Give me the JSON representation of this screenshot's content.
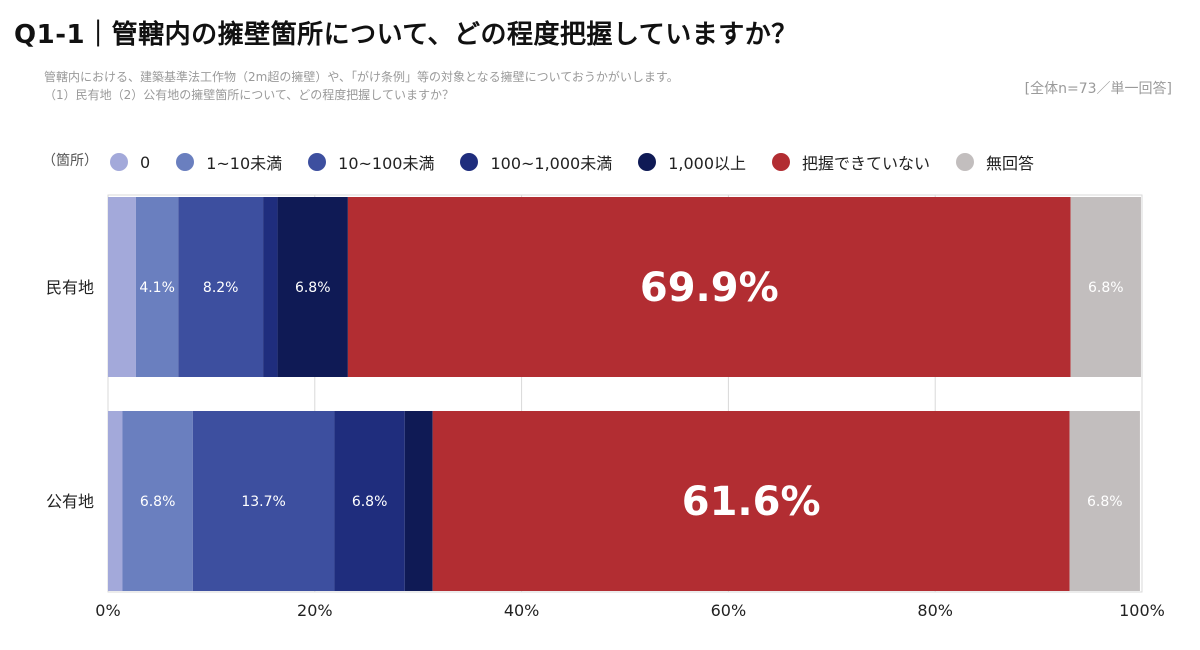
{
  "header": {
    "title": "Q1-1｜管轄内の擁壁箇所について、どの程度把握していますか？",
    "subtitle_line1": "管轄内における、建築基準法工作物（2m超の擁壁）や、「がけ条例」等の対象となる擁壁についておうかがいします。",
    "subtitle_line2": "（1）民有地（2）公有地の擁壁箇所について、どの程度把握していますか？",
    "sample_note": "[全体n=73／単一回答]"
  },
  "chart_data": {
    "type": "bar",
    "orientation": "horizontal",
    "stacked": true,
    "legend_unit": "（箇所）",
    "categories": [
      "民有地",
      "公有地"
    ],
    "series": [
      {
        "name": "0",
        "color": "#a3a9da",
        "values": [
          2.7,
          1.4
        ]
      },
      {
        "name": "1~10未満",
        "color": "#6a7fbf",
        "values": [
          4.1,
          6.8
        ]
      },
      {
        "name": "10~100未満",
        "color": "#3d4f9f",
        "values": [
          8.2,
          13.7
        ]
      },
      {
        "name": "100~1,000未満",
        "color": "#1f2d7d",
        "values": [
          1.4,
          6.8
        ]
      },
      {
        "name": "1,000以上",
        "color": "#0f1a55",
        "values": [
          6.8,
          2.7
        ]
      },
      {
        "name": "把握できていない",
        "color": "#b22d32",
        "values": [
          69.9,
          61.6
        ]
      },
      {
        "name": "無回答",
        "color": "#c2bebe",
        "values": [
          6.8,
          6.8
        ]
      }
    ],
    "data_labels": [
      [
        "",
        "4.1%",
        "8.2%",
        "",
        "6.8%",
        "69.9%",
        "6.8%"
      ],
      [
        "",
        "6.8%",
        "13.7%",
        "6.8%",
        "",
        "61.6%",
        "6.8%"
      ]
    ],
    "xlim": [
      0,
      100
    ],
    "x_ticks": [
      "0%",
      "20%",
      "40%",
      "60%",
      "80%",
      "100%"
    ],
    "grid": true
  }
}
